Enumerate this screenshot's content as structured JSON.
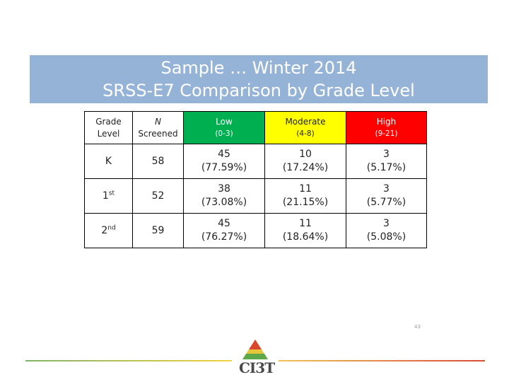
{
  "title": {
    "line1": "Sample … Winter 2014",
    "line2": "SRSS-E7  Comparison by Grade Level"
  },
  "table": {
    "headers": [
      {
        "line1": "Grade",
        "line2": "Level"
      },
      {
        "line1": "N",
        "line2": "Screened"
      },
      {
        "line1": "Low",
        "line2": "(0-3)"
      },
      {
        "line1": "Moderate",
        "line2": "(4-8)"
      },
      {
        "line1": "High",
        "line2": "(9-21)"
      }
    ],
    "rows": [
      {
        "grade": "K",
        "grade_sup": "",
        "n": "58",
        "low": "45",
        "low_pct": "(77.59%)",
        "mod": "10",
        "mod_pct": "(17.24%)",
        "high": "3",
        "high_pct": "(5.17%)"
      },
      {
        "grade": "1",
        "grade_sup": "st",
        "n": "52",
        "low": "38",
        "low_pct": "(73.08%)",
        "mod": "11",
        "mod_pct": "(21.15%)",
        "high": "3",
        "high_pct": "(5.77%)"
      },
      {
        "grade": "2",
        "grade_sup": "nd",
        "n": "59",
        "low": "45",
        "low_pct": "(76.27%)",
        "mod": "11",
        "mod_pct": "(18.64%)",
        "high": "3",
        "high_pct": "(5.08%)"
      }
    ]
  },
  "page_number": "43",
  "logo": {
    "text": "CI3T"
  },
  "colors": {
    "title_band": "#95b3d7",
    "low": "#00b050",
    "moderate": "#ffff00",
    "high": "#ff0000"
  }
}
